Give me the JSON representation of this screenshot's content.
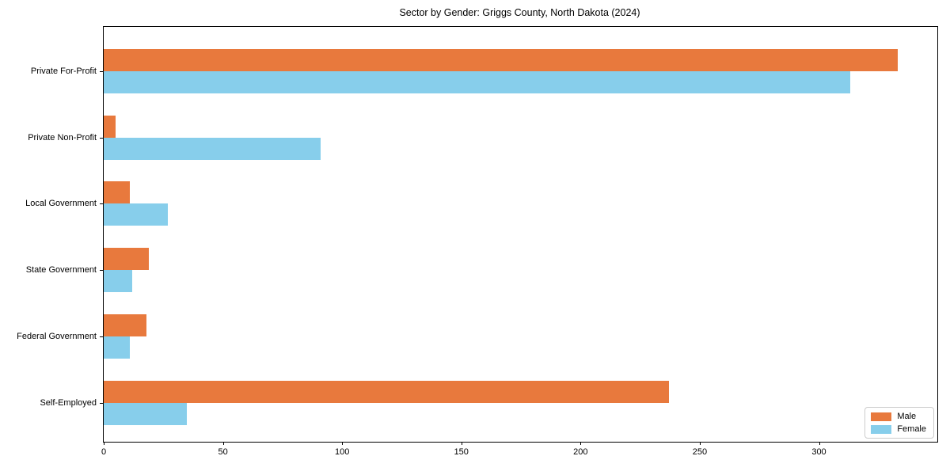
{
  "chart_data": {
    "type": "bar",
    "orientation": "horizontal",
    "title": "Sector by Gender: Griggs County, North Dakota (2024)",
    "xlabel": "",
    "ylabel": "",
    "categories": [
      "Private For-Profit",
      "Private Non-Profit",
      "Local Government",
      "State Government",
      "Federal Government",
      "Self-Employed"
    ],
    "series": [
      {
        "name": "Male",
        "color": "#e8793d",
        "values": [
          333,
          5,
          11,
          19,
          18,
          237
        ]
      },
      {
        "name": "Female",
        "color": "#87ceeb",
        "values": [
          313,
          91,
          27,
          12,
          11,
          35
        ]
      }
    ],
    "xlim": [
      0,
      349.65
    ],
    "xticks": [
      0,
      50,
      100,
      150,
      200,
      250,
      300
    ],
    "grid": false,
    "legend_position": "lower right",
    "plot_border": "#000000",
    "background": "#ffffff"
  }
}
